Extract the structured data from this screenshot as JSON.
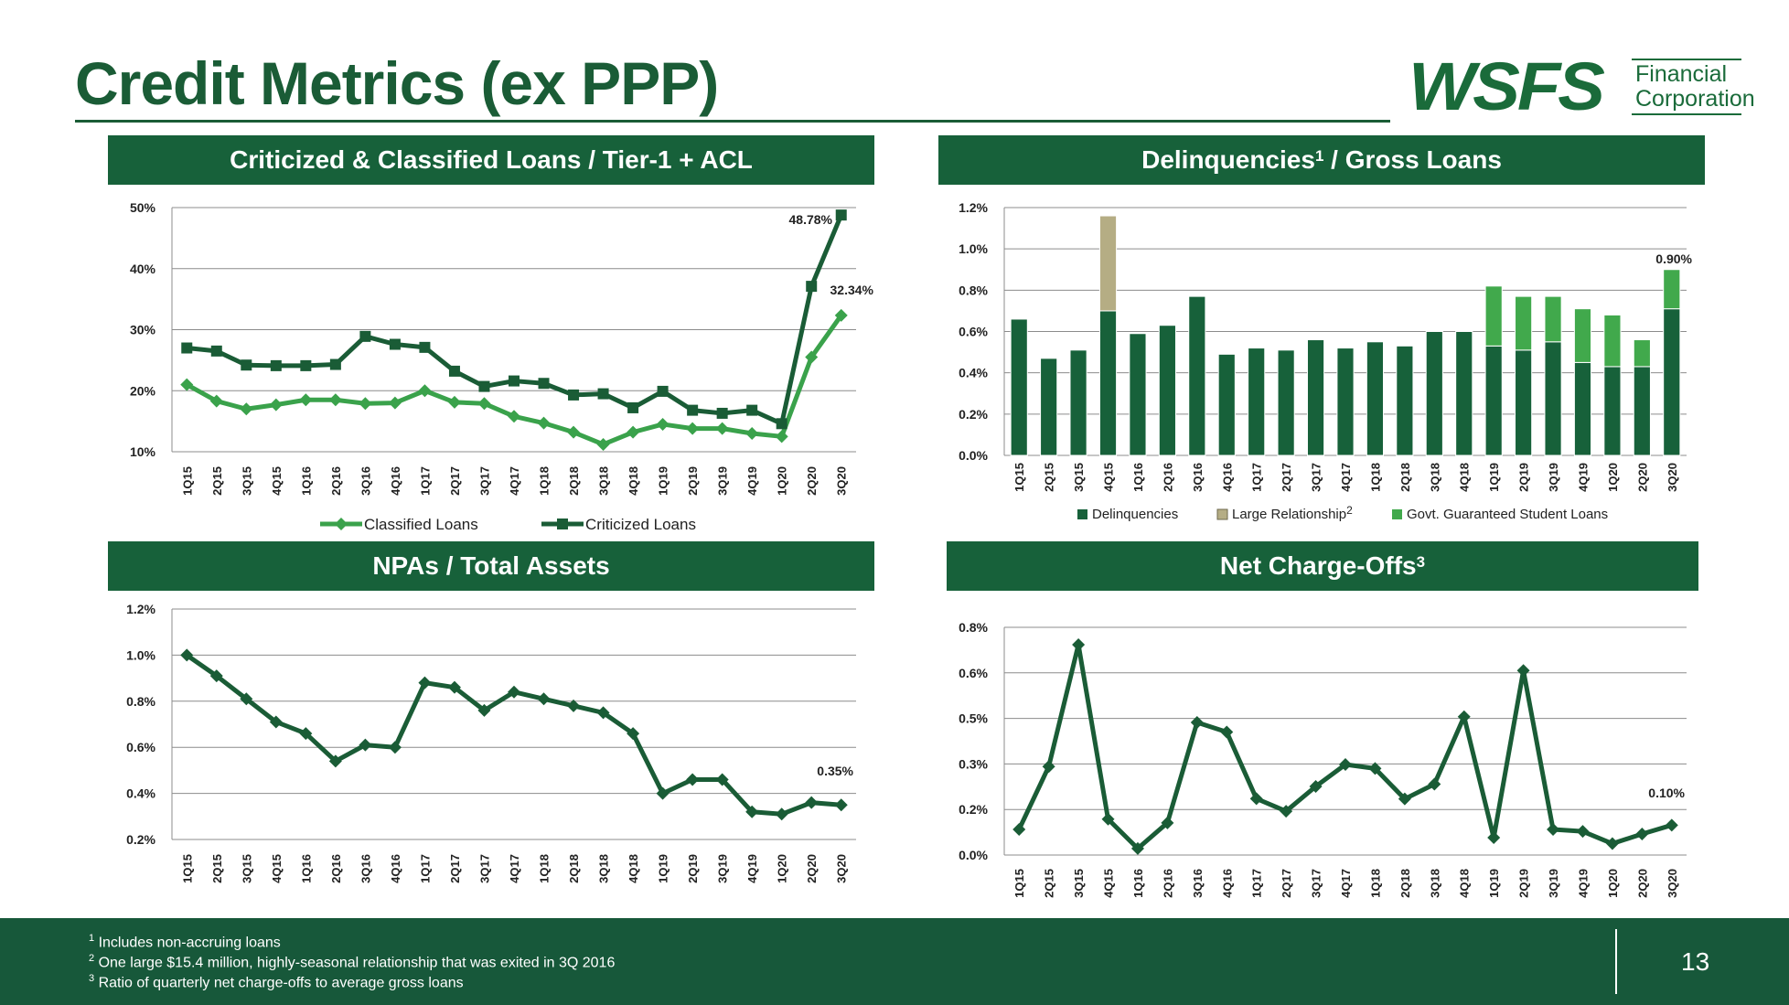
{
  "page": {
    "title": "Credit Metrics (ex PPP)",
    "logo_main": "WSFS",
    "logo_sub_1": "Financial",
    "logo_sub_2": "Corporation",
    "page_number": "13",
    "brand_color": "#1a5c36"
  },
  "panels": {
    "p1_title": "Criticized & Classified Loans / Tier-1 + ACL",
    "p2_title_a": "Delinquencies",
    "p2_title_sup": "1",
    "p2_title_b": " / Gross Loans",
    "p3_title": "NPAs / Total Assets",
    "p4_title_a": "Net Charge-Offs",
    "p4_title_sup": "3"
  },
  "footnotes": [
    {
      "num": "1",
      "text": " Includes non-accruing loans"
    },
    {
      "num": "2",
      "text": " One large $15.4 million, highly-seasonal relationship that was exited in 3Q 2016"
    },
    {
      "num": "3",
      "text": " Ratio of quarterly net charge-offs to average gross loans"
    }
  ],
  "chart_data": [
    {
      "id": "criticized",
      "type": "line",
      "title": "Criticized & Classified Loans / Tier-1 + ACL",
      "categories": [
        "1Q15",
        "2Q15",
        "3Q15",
        "4Q15",
        "1Q16",
        "2Q16",
        "3Q16",
        "4Q16",
        "1Q17",
        "2Q17",
        "3Q17",
        "4Q17",
        "1Q18",
        "2Q18",
        "3Q18",
        "4Q18",
        "1Q19",
        "2Q19",
        "3Q19",
        "4Q19",
        "1Q20",
        "2Q20",
        "3Q20"
      ],
      "y_ticks": [
        "10%",
        "20%",
        "30%",
        "40%",
        "50%"
      ],
      "ylim": [
        10,
        50
      ],
      "legend_position": "bottom",
      "series": [
        {
          "name": "Classified Loans",
          "color": "#3aa24b",
          "marker": "diamond",
          "values": [
            21.0,
            18.3,
            17.0,
            17.7,
            18.5,
            18.5,
            17.9,
            18.0,
            20.0,
            18.1,
            17.9,
            15.8,
            14.7,
            13.2,
            11.2,
            13.2,
            14.5,
            13.8,
            13.8,
            13.0,
            12.5,
            25.5,
            32.34
          ]
        },
        {
          "name": "Criticized Loans",
          "color": "#1a5c36",
          "marker": "square",
          "values": [
            27.0,
            26.5,
            24.2,
            24.1,
            24.1,
            24.3,
            28.9,
            27.6,
            27.1,
            23.2,
            20.7,
            21.6,
            21.2,
            19.3,
            19.5,
            17.2,
            19.9,
            16.8,
            16.3,
            16.8,
            14.6,
            37.1,
            48.78
          ]
        }
      ],
      "annotations": [
        "48.78%",
        "32.34%"
      ]
    },
    {
      "id": "delinquencies",
      "type": "bar",
      "stacked": true,
      "title": "Delinquencies / Gross Loans",
      "categories": [
        "1Q15",
        "2Q15",
        "3Q15",
        "4Q15",
        "1Q16",
        "2Q16",
        "3Q16",
        "4Q16",
        "1Q17",
        "2Q17",
        "3Q17",
        "4Q17",
        "1Q18",
        "2Q18",
        "3Q18",
        "4Q18",
        "1Q19",
        "2Q19",
        "3Q19",
        "4Q19",
        "1Q20",
        "2Q20",
        "3Q20"
      ],
      "y_ticks": [
        "0.0%",
        "0.2%",
        "0.4%",
        "0.6%",
        "0.8%",
        "1.0%",
        "1.2%"
      ],
      "ylim": [
        0,
        1.2
      ],
      "legend_position": "bottom",
      "series": [
        {
          "name": "Delinquencies",
          "color": "#17613a",
          "values": [
            0.66,
            0.47,
            0.51,
            0.7,
            0.59,
            0.63,
            0.77,
            0.49,
            0.52,
            0.51,
            0.56,
            0.52,
            0.55,
            0.53,
            0.6,
            0.6,
            0.53,
            0.51,
            0.55,
            0.45,
            0.43,
            0.43,
            0.71
          ]
        },
        {
          "name": "Large Relationship",
          "sup": "2",
          "color": "#b5ad84",
          "values": [
            0,
            0,
            0,
            0.46,
            0,
            0,
            0,
            0,
            0,
            0,
            0,
            0,
            0,
            0,
            0,
            0,
            0,
            0,
            0,
            0,
            0,
            0,
            0
          ]
        },
        {
          "name": "Govt. Guaranteed Student Loans",
          "color": "#41a94c",
          "values": [
            0,
            0,
            0,
            0,
            0,
            0,
            0,
            0,
            0,
            0,
            0,
            0,
            0,
            0,
            0,
            0,
            0.29,
            0.26,
            0.22,
            0.26,
            0.25,
            0.13,
            0.19
          ]
        }
      ],
      "annotations": [
        "0.90%"
      ]
    },
    {
      "id": "npas",
      "type": "line",
      "title": "NPAs / Total Assets",
      "categories": [
        "1Q15",
        "2Q15",
        "3Q15",
        "4Q15",
        "1Q16",
        "2Q16",
        "3Q16",
        "4Q16",
        "1Q17",
        "2Q17",
        "3Q17",
        "4Q17",
        "1Q18",
        "2Q18",
        "3Q18",
        "4Q18",
        "1Q19",
        "2Q19",
        "3Q19",
        "4Q19",
        "1Q20",
        "2Q20",
        "3Q20"
      ],
      "y_ticks": [
        "0.2%",
        "0.4%",
        "0.6%",
        "0.8%",
        "1.0%",
        "1.2%"
      ],
      "ylim": [
        0.2,
        1.2
      ],
      "series": [
        {
          "name": "NPAs / Total Assets",
          "color": "#1a5c36",
          "marker": "diamond",
          "values": [
            1.0,
            0.91,
            0.81,
            0.71,
            0.66,
            0.54,
            0.61,
            0.6,
            0.88,
            0.86,
            0.76,
            0.84,
            0.81,
            0.78,
            0.75,
            0.66,
            0.4,
            0.46,
            0.46,
            0.32,
            0.31,
            0.36,
            0.35
          ]
        }
      ],
      "annotations": [
        "0.35%"
      ]
    },
    {
      "id": "nco",
      "type": "line",
      "title": "Net Charge-Offs",
      "categories": [
        "1Q15",
        "2Q15",
        "3Q15",
        "4Q15",
        "1Q16",
        "2Q16",
        "3Q16",
        "4Q16",
        "1Q17",
        "2Q17",
        "3Q17",
        "4Q17",
        "1Q18",
        "2Q18",
        "3Q18",
        "4Q18",
        "1Q19",
        "2Q19",
        "3Q19",
        "4Q19",
        "1Q20",
        "2Q20",
        "3Q20"
      ],
      "y_ticks": [
        "0.0%",
        "0.2%",
        "0.3%",
        "0.5%",
        "0.6%",
        "0.8%"
      ],
      "ylim": [
        0,
        0.8
      ],
      "series": [
        {
          "name": "Net Charge-Offs",
          "color": "#1a5c36",
          "marker": "diamond",
          "values": [
            0.09,
            0.311,
            0.739,
            0.126,
            0.023,
            0.113,
            0.466,
            0.432,
            0.198,
            0.154,
            0.241,
            0.318,
            0.304,
            0.197,
            0.249,
            0.486,
            0.061,
            0.648,
            0.09,
            0.083,
            0.04,
            0.074,
            0.105
          ]
        }
      ],
      "annotations": [
        "0.10%"
      ]
    }
  ]
}
